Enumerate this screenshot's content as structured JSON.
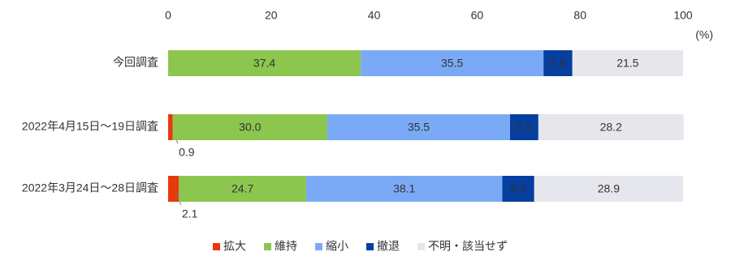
{
  "chart_data": {
    "type": "stacked-bar-horizontal",
    "categories": [
      "今回調査",
      "2022年4月15日～19日調査",
      "2022年3月24日～28日調査"
    ],
    "series": [
      {
        "name": "拡大",
        "color": "#e8380d",
        "label_color": "#333333",
        "values": [
          0,
          0.9,
          2.1
        ]
      },
      {
        "name": "維持",
        "color": "#8cc64f",
        "label_color": "#ffffff",
        "values": [
          37.4,
          30,
          24.7
        ],
        "value_labels": [
          "37.4",
          "30.0",
          "24.7"
        ]
      },
      {
        "name": "縮小",
        "color": "#7aaaf5",
        "label_color": "#ffffff",
        "values": [
          35.5,
          35.5,
          38.1
        ]
      },
      {
        "name": "撤退",
        "color": "#063fa0",
        "label_color": "#ffffff",
        "values": [
          5.6,
          5.5,
          6.2
        ]
      },
      {
        "name": "不明・該当せず",
        "color": "#e6e7ec",
        "label_color": "#333333",
        "values": [
          21.5,
          28.2,
          28.9
        ]
      }
    ],
    "xlim": [
      0,
      100
    ],
    "xticks": [
      0,
      20,
      40,
      60,
      80,
      100
    ],
    "x_unit": "(%)",
    "grid": false,
    "legend": "bottom"
  }
}
